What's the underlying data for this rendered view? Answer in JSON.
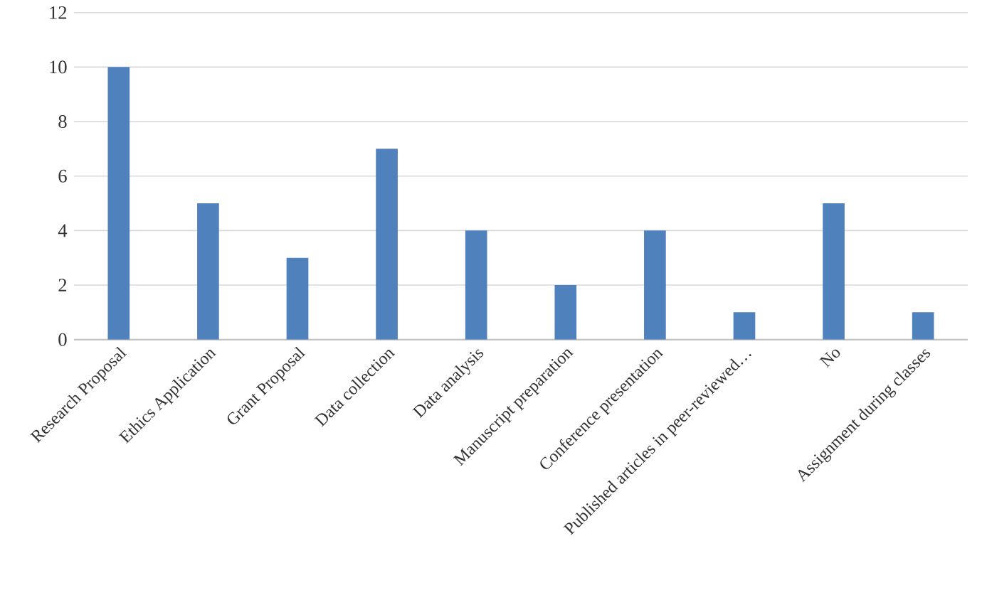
{
  "chart_data": {
    "type": "bar",
    "categories": [
      "Research Proposal",
      "Ethics Application",
      "Grant Proposal",
      "Data collection",
      "Data analysis",
      "Manuscript preparation",
      "Conference presentation",
      "Published articles in peer-reviewed…",
      "No",
      "Assignment during classes"
    ],
    "values": [
      10,
      5,
      3,
      7,
      4,
      2,
      4,
      1,
      5,
      1
    ],
    "color": "#4f81bd",
    "ylim": [
      0,
      12
    ],
    "yticks": [
      0,
      2,
      4,
      6,
      8,
      10,
      12
    ],
    "grid": "y"
  }
}
